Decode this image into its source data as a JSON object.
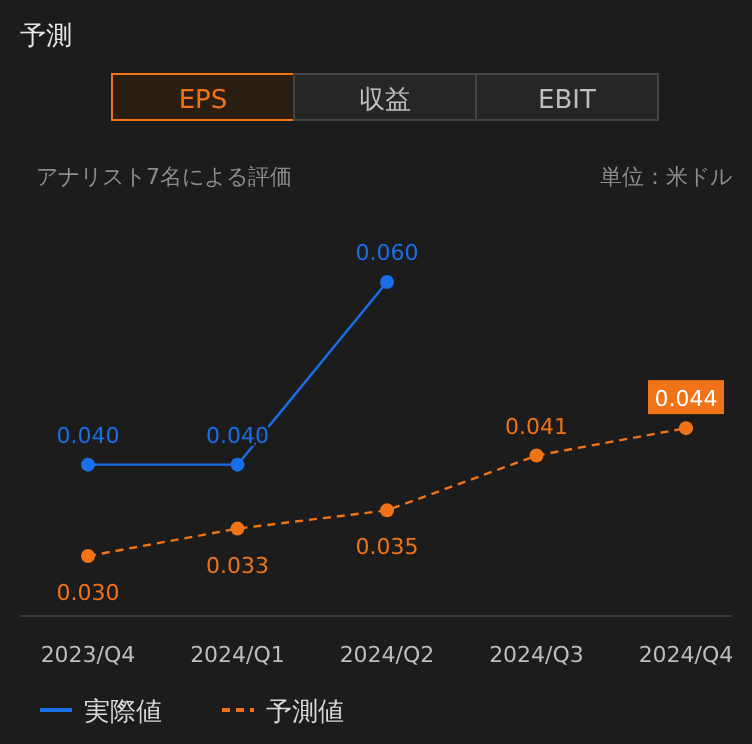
{
  "chart_data": {
    "type": "line",
    "title": "予測",
    "subtitle": "アナリスト7名による評価",
    "annotations": [
      "EPS",
      "収益",
      "EBIT",
      "単位：米ドル"
    ],
    "categories": [
      "2023/Q4",
      "2024/Q1",
      "2024/Q2",
      "2024/Q3",
      "2024/Q4"
    ],
    "series": [
      {
        "name": "実際値",
        "color": "#1a6ee8",
        "values": [
          0.04,
          0.04,
          0.06,
          null,
          null
        ],
        "value_labels": [
          "0.040",
          "0.040",
          "0.060",
          null,
          null
        ],
        "line_style": "solid"
      },
      {
        "name": "予測値",
        "color": "#f07318",
        "values": [
          0.03,
          0.033,
          0.035,
          0.041,
          0.044
        ],
        "value_labels": [
          "0.030",
          "0.033",
          "0.035",
          "0.041",
          "0.044"
        ],
        "line_style": "dashed"
      }
    ],
    "marker": "circle",
    "legend": "bottom"
  }
}
